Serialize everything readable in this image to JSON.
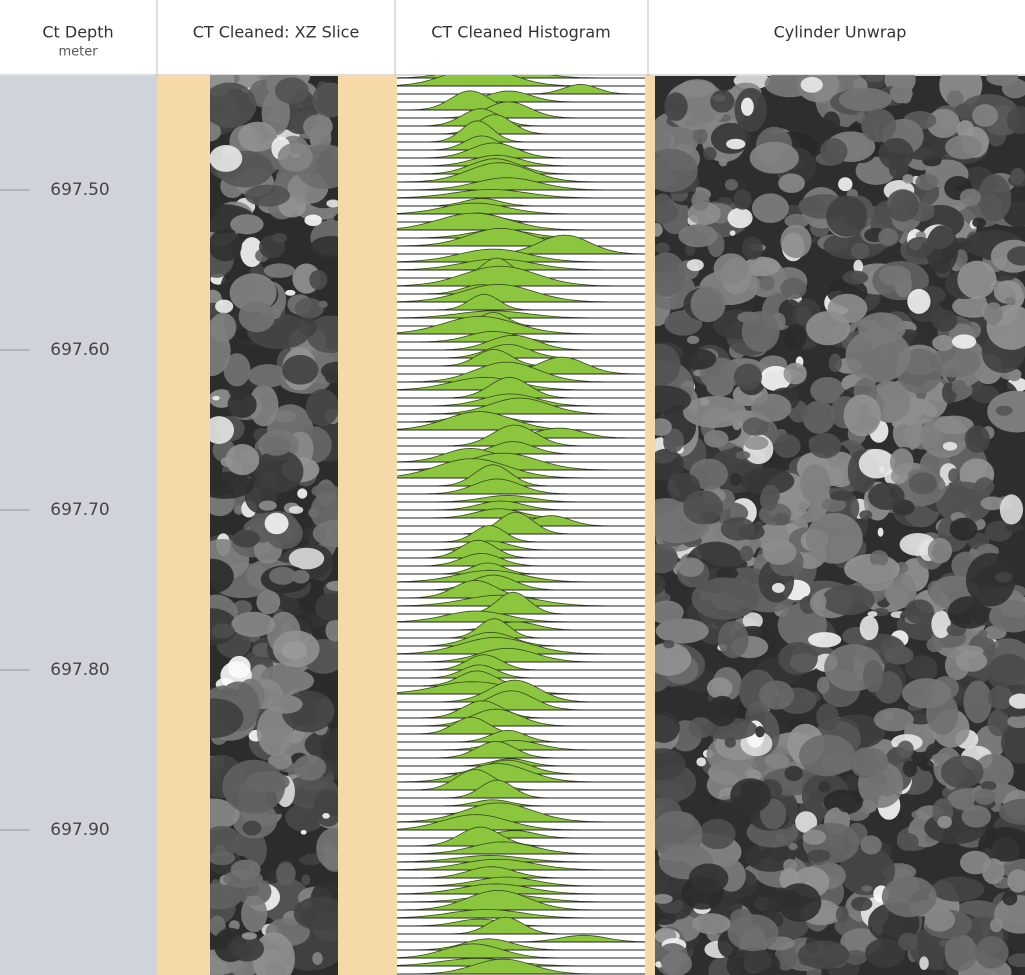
{
  "header": {
    "columns": [
      {
        "title": "Ct Depth",
        "unit": "meter"
      },
      {
        "title": "CT Cleaned: XZ Slice"
      },
      {
        "title": "CT Cleaned Histogram"
      },
      {
        "title": "Cylinder Unwrap"
      }
    ]
  },
  "depth_track": {
    "labels": [
      "697.50",
      "697.60",
      "697.70",
      "697.80",
      "697.90"
    ]
  }
}
